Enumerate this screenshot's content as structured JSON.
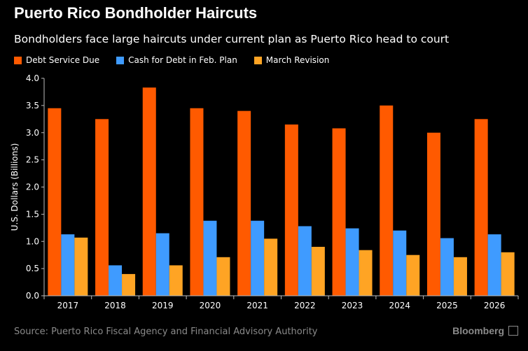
{
  "header": {
    "title": "Puerto Rico Bondholder Haircuts",
    "subtitle": "Bondholders face large haircuts under current plan as Puerto Rico head to court"
  },
  "footer": {
    "source": "Source: Puerto Rico Fiscal Agency and Financial Advisory Authority",
    "brand": "Bloomberg"
  },
  "chart_data": {
    "type": "bar",
    "title": "Puerto Rico Bondholder Haircuts",
    "xlabel": "",
    "ylabel": "U.S. Dollars (Billions)",
    "ylim": [
      0,
      4.0
    ],
    "yticks": [
      "0.0",
      "0.5",
      "1.0",
      "1.5",
      "2.0",
      "2.5",
      "3.0",
      "3.5",
      "4.0"
    ],
    "categories": [
      "2017",
      "2018",
      "2019",
      "2020",
      "2021",
      "2022",
      "2023",
      "2024",
      "2025",
      "2026"
    ],
    "series": [
      {
        "name": "Debt Service Due",
        "color": "#ff5a00",
        "values": [
          3.45,
          3.25,
          3.83,
          3.45,
          3.4,
          3.15,
          3.08,
          3.5,
          3.0,
          3.25
        ]
      },
      {
        "name": "Cash for Debt in Feb. Plan",
        "color": "#3f9bff",
        "values": [
          1.13,
          0.56,
          1.15,
          1.38,
          1.38,
          1.28,
          1.24,
          1.2,
          1.06,
          1.13
        ]
      },
      {
        "name": "March Revision",
        "color": "#ffa424",
        "values": [
          1.07,
          0.4,
          0.56,
          0.71,
          1.05,
          0.9,
          0.84,
          0.75,
          0.71,
          0.8
        ]
      }
    ],
    "grid": false,
    "legend": "top-left"
  }
}
